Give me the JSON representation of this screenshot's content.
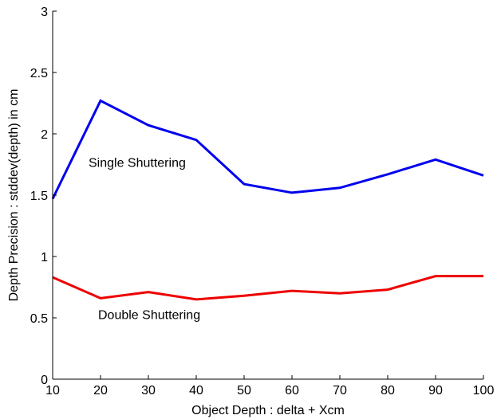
{
  "chart_data": {
    "type": "line",
    "title": "",
    "xlabel": "Object Depth : delta + Xcm",
    "ylabel": "Depth Precision : stddev(depth) in cm",
    "xlim": [
      10,
      100
    ],
    "ylim": [
      0,
      3
    ],
    "xticks": [
      10,
      20,
      30,
      40,
      50,
      60,
      70,
      80,
      90,
      100
    ],
    "yticks": [
      0,
      0.5,
      1,
      1.5,
      2,
      2.5,
      3
    ],
    "ytick_labels": [
      "0",
      "0.5",
      "1",
      "1.5",
      "2",
      "2.5",
      "3"
    ],
    "grid": false,
    "x": [
      10,
      20,
      30,
      40,
      50,
      60,
      70,
      80,
      90,
      100
    ],
    "series": [
      {
        "color": "#0000ee",
        "values": [
          1.47,
          2.27,
          2.07,
          1.95,
          1.59,
          1.52,
          1.56,
          1.67,
          1.79,
          1.66
        ]
      },
      {
        "color": "#ee0000",
        "values": [
          0.83,
          0.66,
          0.71,
          0.65,
          0.68,
          0.72,
          0.7,
          0.73,
          0.84,
          0.84
        ]
      }
    ],
    "annotations": [
      {
        "text": "Single Shuttering",
        "x": 17.5,
        "y": 1.73
      },
      {
        "text": "Double Shuttering",
        "x": 19.5,
        "y": 0.49
      }
    ]
  }
}
